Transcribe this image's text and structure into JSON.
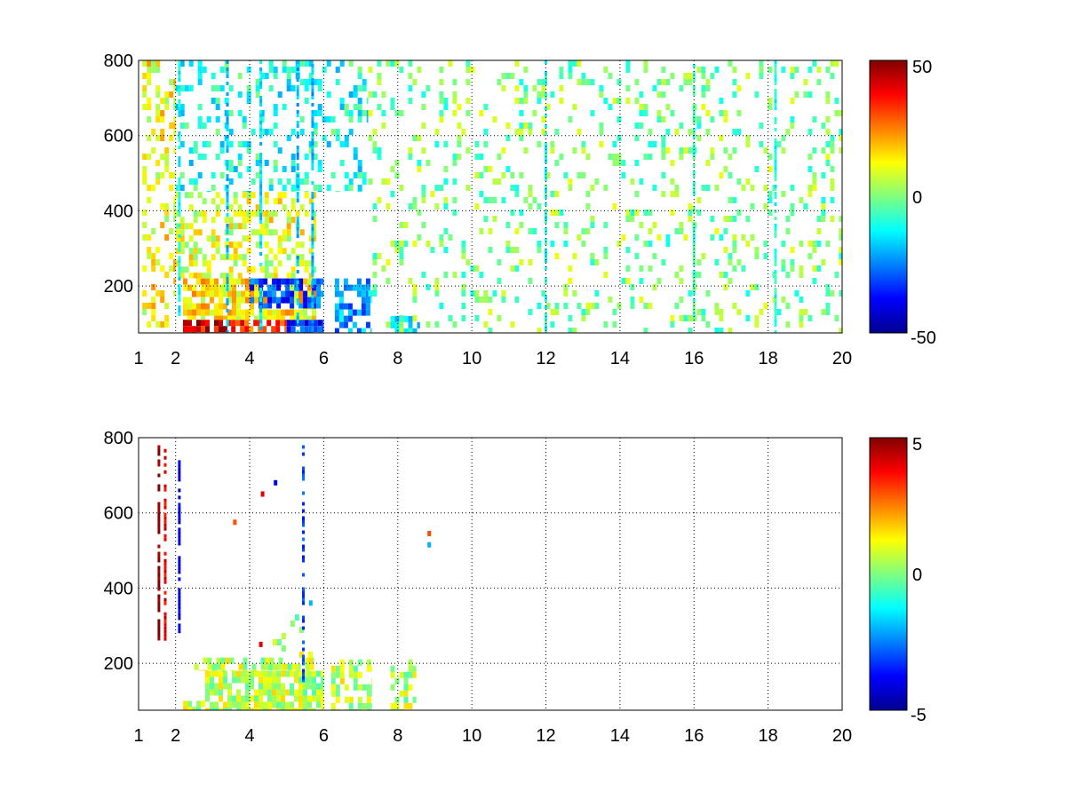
{
  "chart_data": [
    {
      "type": "heatmap",
      "title": "",
      "xlabel": "",
      "ylabel": "",
      "xlim": [
        1,
        20
      ],
      "ylim": [
        75,
        800
      ],
      "x_ticks": [
        "1",
        "2",
        "4",
        "6",
        "8",
        "10",
        "12",
        "14",
        "16",
        "18",
        "20"
      ],
      "y_ticks": [
        "200",
        "400",
        "600",
        "800"
      ],
      "grid": true,
      "colormap": "jet",
      "colorbar": {
        "range": [
          -50,
          50
        ],
        "tick_labels": [
          "50",
          "0",
          "-50"
        ]
      },
      "regions": [
        {
          "x": [
            1.1,
            2.0
          ],
          "y": [
            75,
            800
          ],
          "value": 12,
          "density": 0.35
        },
        {
          "x": [
            2.2,
            3.5
          ],
          "y": [
            75,
            110
          ],
          "value": 40,
          "density": 0.95
        },
        {
          "x": [
            3.5,
            5.0
          ],
          "y": [
            75,
            110
          ],
          "value": 30,
          "density": 0.9
        },
        {
          "x": [
            5.0,
            6.0
          ],
          "y": [
            75,
            110
          ],
          "value": -35,
          "density": 0.9
        },
        {
          "x": [
            2.2,
            5.8
          ],
          "y": [
            110,
            220
          ],
          "value": 15,
          "density": 0.8
        },
        {
          "x": [
            4.0,
            6.0
          ],
          "y": [
            140,
            220
          ],
          "value": -30,
          "density": 0.6
        },
        {
          "x": [
            6.3,
            7.3
          ],
          "y": [
            75,
            220
          ],
          "value": -22,
          "density": 0.55
        },
        {
          "x": [
            7.8,
            8.6
          ],
          "y": [
            75,
            120
          ],
          "value": -18,
          "density": 0.6
        },
        {
          "x": [
            2.0,
            5.8
          ],
          "y": [
            220,
            450
          ],
          "value": 10,
          "density": 0.45
        },
        {
          "x": [
            2.0,
            7.2
          ],
          "y": [
            450,
            800
          ],
          "value": -10,
          "density": 0.25
        },
        {
          "x": [
            7.2,
            20.0
          ],
          "y": [
            75,
            800
          ],
          "value": 0,
          "density": 0.16
        }
      ],
      "streaks": [
        {
          "x": 2.1,
          "value": -12
        },
        {
          "x": 3.4,
          "value": -18
        },
        {
          "x": 4.3,
          "value": -15
        },
        {
          "x": 5.3,
          "value": -20
        },
        {
          "x": 5.7,
          "value": -20
        },
        {
          "x": 12.0,
          "value": -10
        },
        {
          "x": 16.0,
          "value": -6
        },
        {
          "x": 18.2,
          "value": -10
        }
      ]
    },
    {
      "type": "heatmap",
      "title": "",
      "xlabel": "",
      "ylabel": "",
      "xlim": [
        1,
        20
      ],
      "ylim": [
        75,
        800
      ],
      "x_ticks": [
        "1",
        "2",
        "4",
        "6",
        "8",
        "10",
        "12",
        "14",
        "16",
        "18",
        "20"
      ],
      "y_ticks": [
        "200",
        "400",
        "600",
        "800"
      ],
      "grid": true,
      "colormap": "jet",
      "colorbar": {
        "range": [
          -5,
          5
        ],
        "tick_labels": [
          "5",
          "0",
          "-5"
        ]
      },
      "regions": [
        {
          "x": [
            2.8,
            6.0
          ],
          "y": [
            75,
            180
          ],
          "value": 0.6,
          "density": 0.85
        },
        {
          "x": [
            2.5,
            5.8
          ],
          "y": [
            180,
            215
          ],
          "value": 0.6,
          "density": 0.55
        },
        {
          "x": [
            6.2,
            7.3
          ],
          "y": [
            75,
            210
          ],
          "value": 0.6,
          "density": 0.6
        },
        {
          "x": [
            7.8,
            8.5
          ],
          "y": [
            75,
            210
          ],
          "value": 0.6,
          "density": 0.35
        },
        {
          "x": [
            2.2,
            2.8
          ],
          "y": [
            75,
            100
          ],
          "value": 0.6,
          "density": 0.7
        },
        {
          "x": [
            4.5,
            5.8
          ],
          "y": [
            180,
            330
          ],
          "value": 0.6,
          "density": 0.2
        }
      ],
      "streaks": [
        {
          "x": 1.55,
          "y": [
            260,
            780
          ],
          "value": 5
        },
        {
          "x": 1.72,
          "y": [
            260,
            770
          ],
          "value": 4
        },
        {
          "x": 2.1,
          "y": [
            280,
            740
          ],
          "value": -4
        },
        {
          "x": 5.45,
          "y": [
            150,
            780
          ],
          "value": -3
        }
      ],
      "spots": [
        {
          "x": 3.6,
          "y": 575,
          "value": 3
        },
        {
          "x": 4.35,
          "y": 650,
          "value": 4
        },
        {
          "x": 4.7,
          "y": 680,
          "value": -4
        },
        {
          "x": 4.3,
          "y": 250,
          "value": 4
        },
        {
          "x": 8.85,
          "y": 545,
          "value": 3
        },
        {
          "x": 8.85,
          "y": 515,
          "value": -2
        },
        {
          "x": 5.65,
          "y": 360,
          "value": -2
        }
      ]
    }
  ]
}
